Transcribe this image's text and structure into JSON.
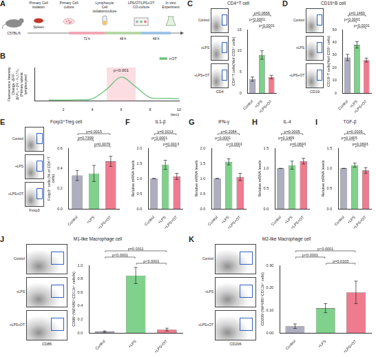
{
  "schematic": {
    "panel": "A",
    "mouse": "C57BL/6",
    "organ": "Spleen",
    "stages": [
      "Primary Cell isolation",
      "Primary Cell culture",
      "Lymphocyte Cell isolation/culture",
      "LPS/OT/LPS+OT CO-culture",
      "In vitro Experiment"
    ],
    "durations": [
      "72 h",
      "48 h",
      "48 h"
    ]
  },
  "chart_data": [
    {
      "panel": "B",
      "type": "line",
      "y_label": [
        "Fluorescence Intensity Change -ΔF/F",
        "ΔF/F₀ = (Ft - F₀) / F₀",
        "(Primary splenic lymphocytes)"
      ],
      "x_label": "(sec)",
      "x": [
        1,
        2,
        3,
        4,
        5,
        6,
        7,
        8,
        9,
        10
      ],
      "series": [
        {
          "name": "+OT",
          "color": "#6cc47c",
          "values": [
            0.05,
            0.05,
            0.06,
            0.1,
            0.5,
            1.0,
            0.6,
            0.15,
            0.12,
            0.1
          ]
        }
      ],
      "xlim": [
        0,
        10
      ],
      "xticks": [
        2,
        4,
        6,
        8,
        10
      ],
      "ylim": [
        0,
        1.4
      ],
      "tick_labels": "x",
      "grid": false,
      "legend": "top right",
      "highlight": {
        "x": [
          5,
          7
        ],
        "label": "p<0.001"
      }
    },
    {
      "panel": "C",
      "type": "bar",
      "title": "CD4⁺T cell",
      "y_label": "CD4⁺T cells(%of CD3⁺ cells)",
      "categories": [
        "Control",
        "+LPS",
        "+LPS+OT"
      ],
      "values": [
        3.3,
        9.0,
        3.8
      ],
      "errors": [
        0.5,
        1.0,
        0.4
      ],
      "colors": [
        "#aeaec0",
        "#7fd18b",
        "#f07b8e"
      ],
      "ylim": [
        0,
        15
      ],
      "yticks": [
        0,
        5,
        10,
        15
      ],
      "grid": false,
      "comparisons": [
        {
          "groups": [
            0,
            2
          ],
          "label": "p=0.0656"
        },
        {
          "groups": [
            0,
            1
          ],
          "label": "p<0.0001"
        },
        {
          "groups": [
            1,
            2
          ],
          "label": "p<0.0001"
        }
      ],
      "flow": {
        "rows": [
          "Control",
          "+LPS",
          "+LPS+OT"
        ],
        "x_label": "CD4"
      }
    },
    {
      "panel": "D",
      "type": "bar",
      "title": "CD19⁺B cell",
      "y_label": "CD19⁺T cells(%of CD3⁺ cells)",
      "categories": [
        "Control",
        "+LPS",
        "+LPS+OT"
      ],
      "values": [
        28,
        38,
        26
      ],
      "errors": [
        2.5,
        2.5,
        1.5
      ],
      "colors": [
        "#aeaec0",
        "#7fd18b",
        "#f07b8e"
      ],
      "ylim": [
        0,
        50
      ],
      "yticks": [
        0,
        10,
        20,
        30,
        40,
        50
      ],
      "grid": false,
      "comparisons": [
        {
          "groups": [
            0,
            2
          ],
          "label": "p=0.1460"
        },
        {
          "groups": [
            0,
            1
          ],
          "label": "p<0.0001"
        },
        {
          "groups": [
            1,
            2
          ],
          "label": "p<0.0001"
        }
      ],
      "flow": {
        "rows": [
          "Control",
          "+LPS",
          "+LPS+OT"
        ],
        "x_label": "CD19"
      }
    },
    {
      "panel": "E",
      "type": "bar",
      "title": "Foxp3⁺Treg cell",
      "y_label": "Foxp3⁺ cells (% of CD4⁺T cells)",
      "categories": [
        "Control",
        "+LPS",
        "+LPS+OT"
      ],
      "values": [
        0.33,
        0.35,
        0.47
      ],
      "errors": [
        0.05,
        0.08,
        0.05
      ],
      "colors": [
        "#aeaec0",
        "#7fd18b",
        "#f07b8e"
      ],
      "ylim": [
        0,
        0.6
      ],
      "yticks": [
        {
          "value": 0,
          "label": "0.0"
        },
        0.2,
        0.4,
        0.6
      ],
      "grid": false,
      "comparisons": [
        {
          "groups": [
            0,
            2
          ],
          "label": "p=0.0015"
        },
        {
          "groups": [
            0,
            1
          ],
          "label": "p=0.7399"
        },
        {
          "groups": [
            1,
            2
          ],
          "label": "p=0.0079"
        }
      ],
      "flow": {
        "rows": [
          "Control",
          "+LPS",
          "+LPS+OT"
        ],
        "x_label": "Foxp3"
      }
    },
    {
      "panel": "F",
      "type": "bar",
      "title": "IL1-β",
      "y_label": "Relative mRNA levels",
      "categories": [
        "Control",
        "+LPS",
        "+LPS+OT"
      ],
      "values": [
        1.0,
        1.45,
        1.07
      ],
      "errors": [
        0,
        0.15,
        0.1
      ],
      "colors": [
        "#aeaec0",
        "#7fd18b",
        "#f07b8e"
      ],
      "ylim": [
        0,
        2
      ],
      "yticks": [
        {
          "value": 0,
          "label": "0.0"
        },
        0.5,
        {
          "value": 1,
          "label": "1.0"
        },
        1.5,
        {
          "value": 2,
          "label": "2.0"
        }
      ],
      "grid": false,
      "comparisons": [
        {
          "groups": [
            0,
            2
          ],
          "label": "p=0.0013"
        },
        {
          "groups": [
            0,
            1
          ],
          "label": "p<0.0001"
        },
        {
          "groups": [
            1,
            2
          ],
          "label": "p=0.0013"
        }
      ]
    },
    {
      "panel": "G",
      "type": "bar",
      "title": "IFN-γ",
      "y_label": "Relative mRNA levels",
      "categories": [
        "Control",
        "+LPS",
        "+LPS+OT"
      ],
      "values": [
        1.0,
        1.55,
        1.05
      ],
      "errors": [
        0,
        0.1,
        0.12
      ],
      "colors": [
        "#aeaec0",
        "#7fd18b",
        "#f07b8e"
      ],
      "ylim": [
        0,
        2
      ],
      "yticks": [
        {
          "value": 0,
          "label": "0.0"
        },
        0.5,
        {
          "value": 1,
          "label": "1.0"
        },
        1.5,
        {
          "value": 2,
          "label": "2.0"
        }
      ],
      "grid": false,
      "comparisons": [
        {
          "groups": [
            0,
            2
          ],
          "label": "p=0.2084"
        },
        {
          "groups": [
            0,
            1
          ],
          "label": "p<0.0001"
        },
        {
          "groups": [
            1,
            2
          ],
          "label": "p<0.0001"
        }
      ]
    },
    {
      "panel": "H",
      "type": "bar",
      "title": "IL-4",
      "y_label": "Relative mRNA levels",
      "categories": [
        "Control",
        "+LPS",
        "+LPS+OT"
      ],
      "values": [
        1.0,
        1.08,
        1.18
      ],
      "errors": [
        0,
        0.1,
        0.07
      ],
      "colors": [
        "#aeaec0",
        "#7fd18b",
        "#f07b8e"
      ],
      "ylim": [
        0,
        1.5
      ],
      "yticks": [
        {
          "value": 0,
          "label": "0.0"
        },
        0.5,
        {
          "value": 1,
          "label": "1.0"
        },
        1.5
      ],
      "grid": false,
      "comparisons": [
        {
          "groups": [
            0,
            2
          ],
          "label": "p=0.0005"
        },
        {
          "groups": [
            0,
            1
          ],
          "label": "p=0.1465"
        },
        {
          "groups": [
            1,
            2
          ],
          "label": "p=0.0693"
        }
      ]
    },
    {
      "panel": "I",
      "type": "bar",
      "title": "TGF-β",
      "y_label": "Relative mRNA levels",
      "categories": [
        "Control",
        "+LPS",
        "+LPS+OT"
      ],
      "values": [
        1.0,
        1.08,
        0.95
      ],
      "errors": [
        0,
        0.05,
        0.07
      ],
      "colors": [
        "#aeaec0",
        "#7fd18b",
        "#f07b8e"
      ],
      "ylim": [
        0,
        1.5
      ],
      "yticks": [
        {
          "value": 0,
          "label": "0.0"
        },
        0.5,
        {
          "value": 1,
          "label": "1.0"
        },
        1.5
      ],
      "grid": false,
      "comparisons": [
        {
          "groups": [
            0,
            2
          ],
          "label": "p=0.0005"
        },
        {
          "groups": [
            0,
            1
          ],
          "label": "p=0.1465"
        },
        {
          "groups": [
            1,
            2
          ],
          "label": "p=0.0693"
        }
      ]
    },
    {
      "panel": "J",
      "type": "bar",
      "title": "M1-like Macrophage cell",
      "y_label": "CD86⁺(%F4/80⁺CD11b⁺ cells%)",
      "categories": [
        "Control",
        "+LPS",
        "+LPS+OT"
      ],
      "values": [
        0.02,
        0.85,
        0.05
      ],
      "errors": [
        0.01,
        0.12,
        0.02
      ],
      "colors": [
        "#aeaec0",
        "#7fd18b",
        "#f07b8e"
      ],
      "ylim": [
        0,
        1
      ],
      "yticks": [
        {
          "value": 0,
          "label": "0.0"
        },
        0.2,
        0.4,
        0.6,
        0.8,
        {
          "value": 1,
          "label": "1.0"
        }
      ],
      "grid": false,
      "comparisons": [
        {
          "groups": [
            0,
            2
          ],
          "label": "p=0.0311"
        },
        {
          "groups": [
            0,
            1
          ],
          "label": "p<0.0001"
        },
        {
          "groups": [
            1,
            2
          ],
          "label": "p<0.0001"
        }
      ],
      "flow": {
        "rows": [
          "Control",
          "+LPS",
          "+LPS+OT"
        ],
        "x_label": "CD86"
      }
    },
    {
      "panel": "K",
      "type": "bar",
      "title": "M2-like Macrophage cell",
      "y_label": "CD206⁺(%F4/80⁺CD11b⁺ cells)",
      "categories": [
        "Control",
        "+LPS",
        "+LPS+OT"
      ],
      "values": [
        0.03,
        0.11,
        0.18
      ],
      "errors": [
        0.01,
        0.02,
        0.05
      ],
      "colors": [
        "#aeaec0",
        "#7fd18b",
        "#f07b8e"
      ],
      "ylim": [
        0,
        0.3
      ],
      "yticks": [
        {
          "value": 0,
          "label": "0.00"
        },
        {
          "value": 0.1,
          "label": "0.10"
        },
        {
          "value": 0.2,
          "label": "0.20"
        },
        {
          "value": 0.3,
          "label": "0.30"
        }
      ],
      "grid": false,
      "comparisons": [
        {
          "groups": [
            0,
            2
          ],
          "label": "p<0.0001"
        },
        {
          "groups": [
            0,
            1
          ],
          "label": "p<0.0001"
        },
        {
          "groups": [
            1,
            2
          ],
          "label": "p=0.0103"
        }
      ],
      "flow": {
        "rows": [
          "Control",
          "+LPS",
          "+LPS+OT"
        ],
        "x_label": "CD206"
      }
    }
  ]
}
